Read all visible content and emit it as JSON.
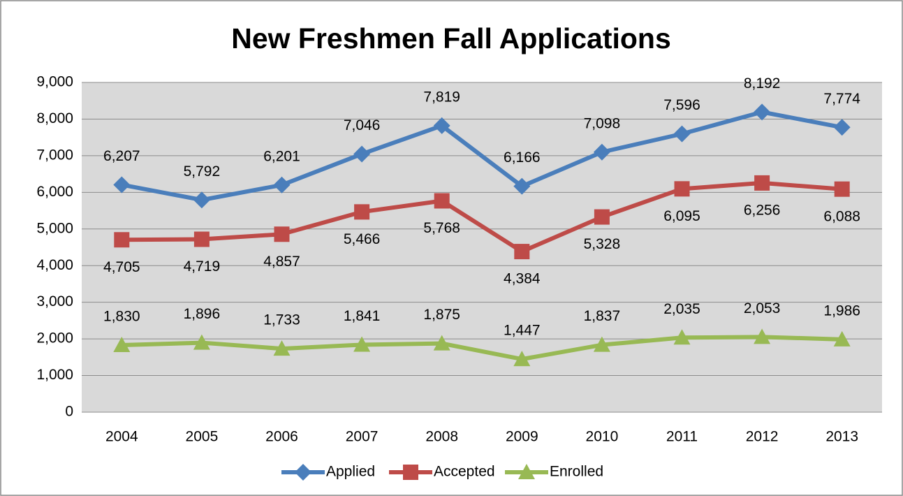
{
  "chart_data": {
    "type": "line",
    "title": "New Freshmen Fall Applications",
    "categories": [
      "2004",
      "2005",
      "2006",
      "2007",
      "2008",
      "2009",
      "2010",
      "2011",
      "2012",
      "2013"
    ],
    "series": [
      {
        "name": "Applied",
        "color": "#4a7ebb",
        "marker": "diamond",
        "label_position": "above",
        "values": [
          6207,
          5792,
          6201,
          7046,
          7819,
          6166,
          7098,
          7596,
          8192,
          7774
        ],
        "value_labels": [
          "6,207",
          "5,792",
          "6,201",
          "7,046",
          "7,819",
          "6,166",
          "7,098",
          "7,596",
          "8,192",
          "7,774"
        ]
      },
      {
        "name": "Accepted",
        "color": "#be4b48",
        "marker": "square",
        "label_position": "below",
        "values": [
          4705,
          4719,
          4857,
          5466,
          5768,
          4384,
          5328,
          6095,
          6256,
          6088
        ],
        "value_labels": [
          "4,705",
          "4,719",
          "4,857",
          "5,466",
          "5,768",
          "4,384",
          "5,328",
          "6,095",
          "6,256",
          "6,088"
        ]
      },
      {
        "name": "Enrolled",
        "color": "#98b954",
        "marker": "triangle",
        "label_position": "above",
        "values": [
          1830,
          1896,
          1733,
          1841,
          1875,
          1447,
          1837,
          2035,
          2053,
          1986
        ],
        "value_labels": [
          "1,830",
          "1,896",
          "1,733",
          "1,841",
          "1,875",
          "1,447",
          "1,837",
          "2,035",
          "2,053",
          "1,986"
        ]
      }
    ],
    "ylim": [
      0,
      9000
    ],
    "yticks": [
      0,
      {
        "value": 1000,
        "label": "1,000"
      },
      {
        "value": 2000,
        "label": "2,000"
      },
      {
        "value": 3000,
        "label": "3,000"
      },
      {
        "value": 4000,
        "label": "4,000"
      },
      {
        "value": 5000,
        "label": "5,000"
      },
      {
        "value": 6000,
        "label": "6,000"
      },
      {
        "value": 7000,
        "label": "7,000"
      },
      {
        "value": 8000,
        "label": "8,000"
      },
      {
        "value": 9000,
        "label": "9,000"
      }
    ],
    "grid": true,
    "legend": "bottom"
  }
}
